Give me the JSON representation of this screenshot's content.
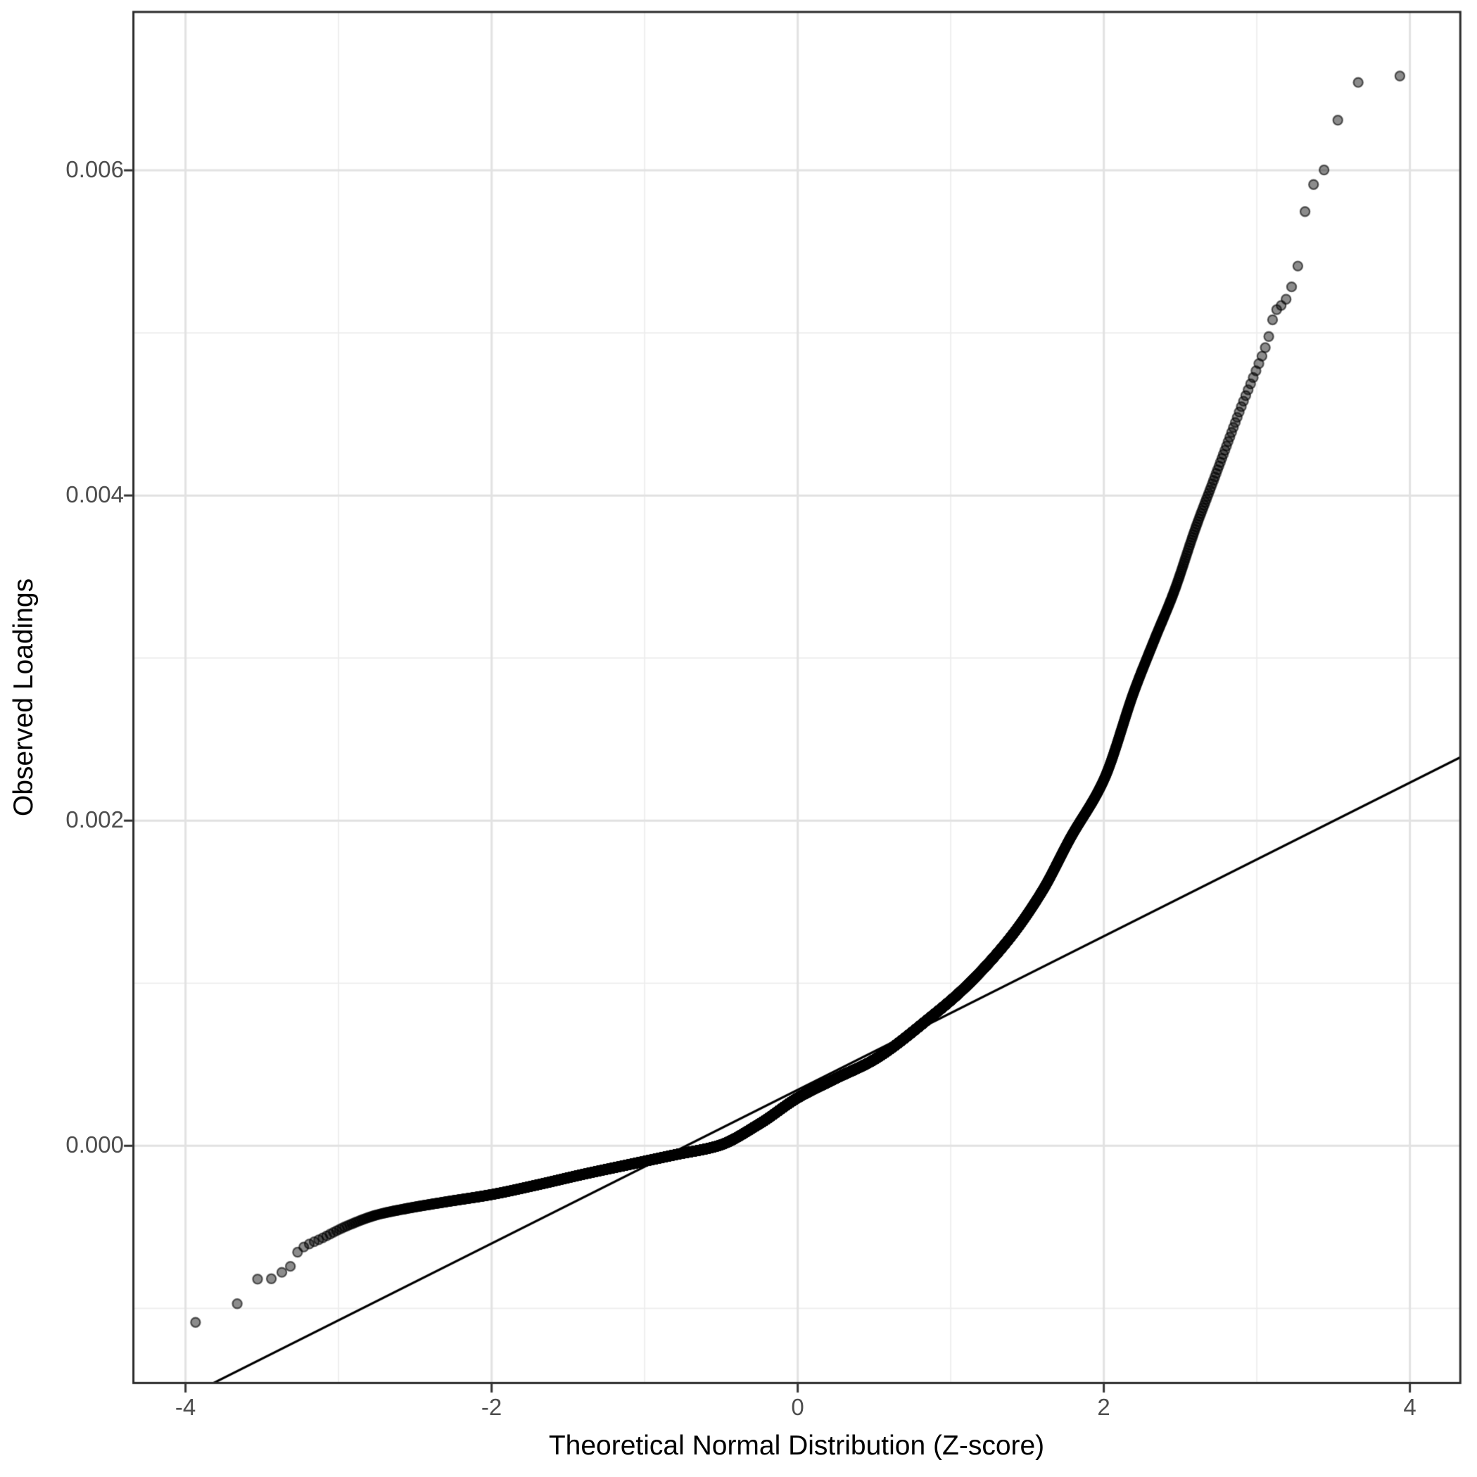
{
  "chart_data": {
    "type": "scatter",
    "subtype": "qq-plot",
    "title": "",
    "xlabel": "Theoretical Normal Distribution (Z-score)",
    "ylabel": "Observed Loadings",
    "legend": "none",
    "grid": "on",
    "x_ticks": [
      {
        "value": -4,
        "label": "-4"
      },
      {
        "value": -2,
        "label": "-2"
      },
      {
        "value": 0,
        "label": "0"
      },
      {
        "value": 2,
        "label": "2"
      },
      {
        "value": 4,
        "label": "4"
      }
    ],
    "x_minor_ticks": [
      -3,
      -1,
      1,
      3
    ],
    "y_ticks": [
      {
        "value": 0.0,
        "label": "0.000"
      },
      {
        "value": 0.002,
        "label": "0.002"
      },
      {
        "value": 0.004,
        "label": "0.004"
      },
      {
        "value": 0.006,
        "label": "0.006"
      }
    ],
    "y_minor_ticks": [
      -0.001,
      0.001,
      0.003,
      0.005
    ],
    "xlim": [
      -4.3405,
      4.3296
    ],
    "ylim": [
      -0.001459,
      0.006974
    ],
    "n_points": 12000,
    "curve_control_points": [
      [
        -3.93,
        -0.001086
      ],
      [
        -3.66,
        -0.00097
      ],
      [
        -3.53,
        -0.00082
      ],
      [
        -3.44,
        -0.000818
      ],
      [
        -3.37,
        -0.000778
      ],
      [
        -3.31,
        -0.000737
      ],
      [
        -3.26,
        -0.000645
      ],
      [
        -3.1,
        -0.000565
      ],
      [
        -2.95,
        -0.000495
      ],
      [
        -2.75,
        -0.000425
      ],
      [
        -2.55,
        -0.000385
      ],
      [
        -2.3,
        -0.000345
      ],
      [
        -2.0,
        -0.0003
      ],
      [
        -1.7,
        -0.00024
      ],
      [
        -1.4,
        -0.000175
      ],
      [
        -1.1,
        -0.000115
      ],
      [
        -0.8,
        -5.5e-05
      ],
      [
        -0.52,
        0.0
      ],
      [
        -0.25,
        0.000135
      ],
      [
        0.0,
        0.000295
      ],
      [
        0.25,
        0.000415
      ],
      [
        0.5,
        0.00053
      ],
      [
        0.88,
        0.0008
      ],
      [
        1.1,
        0.00098
      ],
      [
        1.38,
        0.00127
      ],
      [
        1.6,
        0.00157
      ],
      [
        1.78,
        0.00189
      ],
      [
        2.0,
        0.00225
      ],
      [
        2.2,
        0.0028
      ],
      [
        2.33,
        0.00311
      ],
      [
        2.46,
        0.00341
      ],
      [
        2.6,
        0.0038
      ],
      [
        2.7,
        0.00405
      ],
      [
        2.8,
        0.0043
      ],
      [
        2.9,
        0.00455
      ],
      [
        3.0,
        0.00478
      ],
      [
        3.07,
        0.00495
      ],
      [
        3.12,
        0.00513
      ],
      [
        3.18,
        0.00519
      ],
      [
        3.23,
        0.00529
      ],
      [
        3.27,
        0.00542
      ],
      [
        3.32,
        0.00577
      ],
      [
        3.38,
        0.00593
      ],
      [
        3.45,
        0.00602
      ],
      [
        3.53,
        0.00631
      ],
      [
        3.66,
        0.00654
      ],
      [
        3.93,
        0.00658
      ]
    ],
    "reference_line": {
      "intercept": 0.000344,
      "slope": 0.0004724,
      "color": "#000000",
      "width": 3.2
    },
    "point_style": {
      "radius": 6.6,
      "fill": "rgba(0,0,0,0.45)",
      "stroke": "rgba(0,0,0,0.60)",
      "stroke_width": 2.2
    },
    "colors": {
      "background": "#ffffff",
      "panel_background": "#ffffff",
      "grid_major": "#e2e2e2",
      "grid_minor": "#ededed",
      "panel_border": "#2b2b2b",
      "tick_mark": "#333333",
      "tick_label": "#4d4d4d",
      "axis_title": "#000000"
    }
  }
}
